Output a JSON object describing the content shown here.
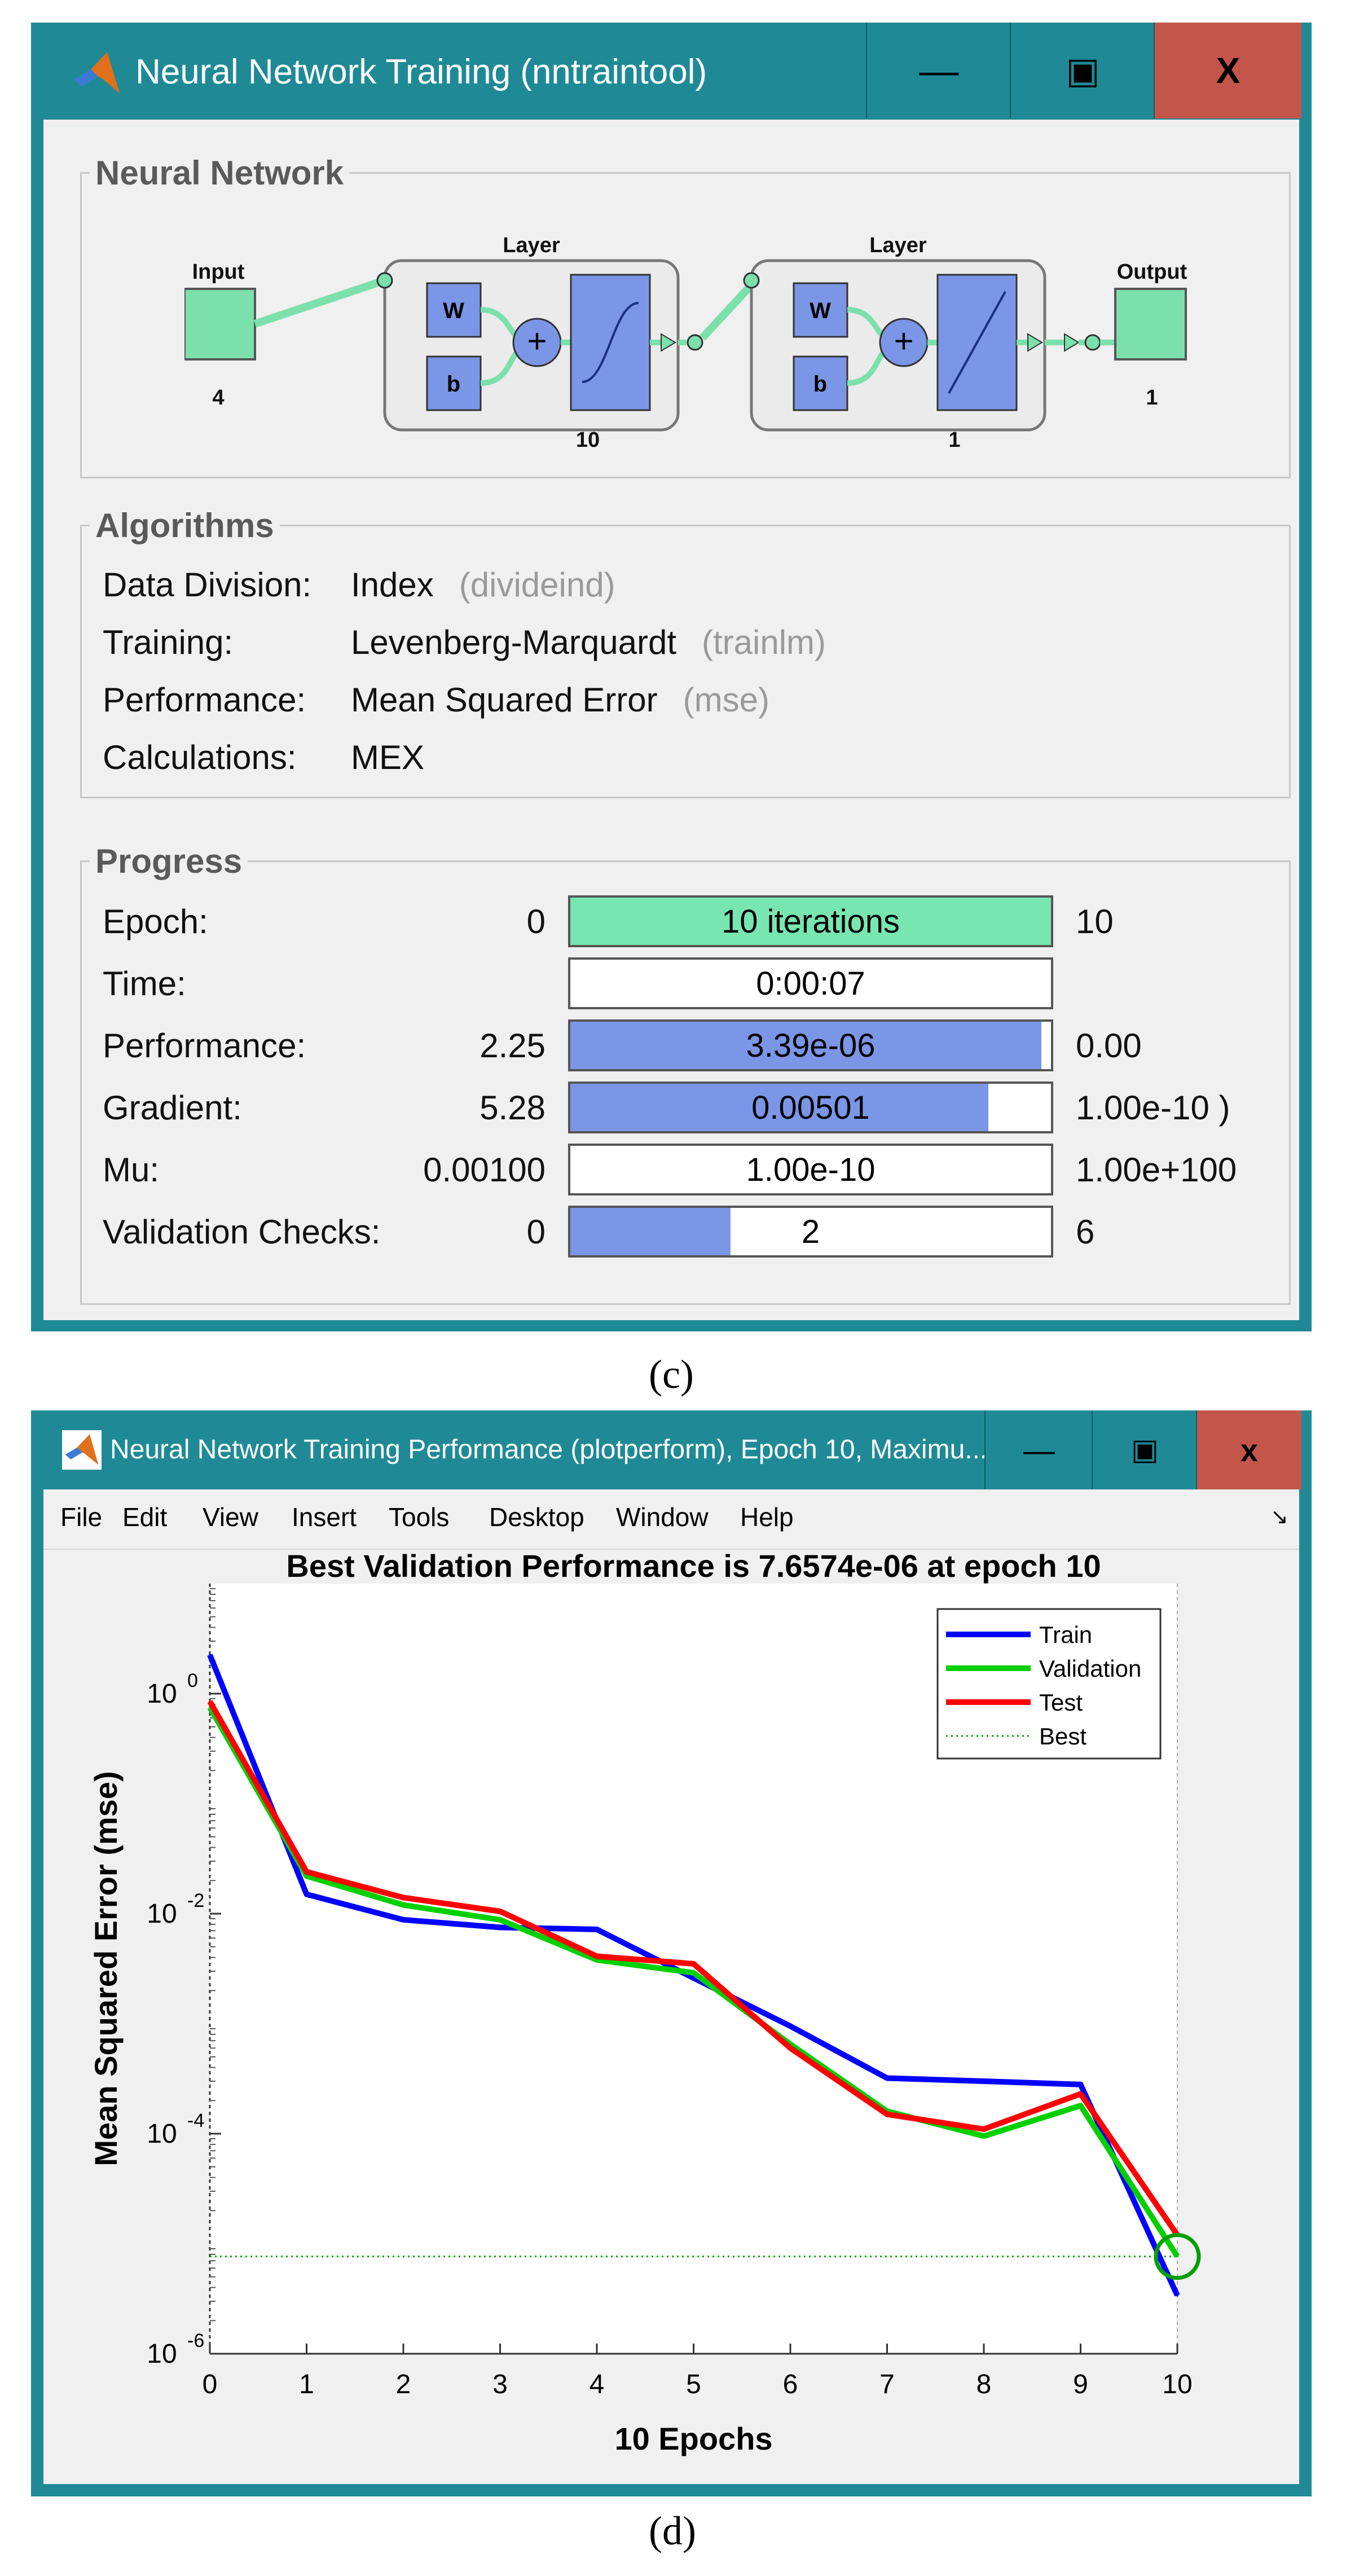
{
  "nntraintool": {
    "title": "Neural Network Training (nntraintool)",
    "window_buttons": {
      "minimize": "―",
      "maximize": "▣",
      "close": "X"
    },
    "network": {
      "group_label": "Neural Network",
      "input_label": "Input",
      "input_size": "4",
      "layers": [
        {
          "label": "Layer",
          "w": "W",
          "b": "b",
          "plus": "+",
          "size": "10",
          "transfer": "tansig"
        },
        {
          "label": "Layer",
          "w": "W",
          "b": "b",
          "plus": "+",
          "size": "1",
          "transfer": "purelin"
        }
      ],
      "output_label": "Output",
      "output_size": "1"
    },
    "algorithms": {
      "group_label": "Algorithms",
      "rows": [
        {
          "label": "Data Division:",
          "value": "Index",
          "code": "(divideind)"
        },
        {
          "label": "Training:",
          "value": "Levenberg-Marquardt",
          "code": "(trainlm)"
        },
        {
          "label": "Performance:",
          "value": "Mean Squared Error",
          "code": "(mse)"
        },
        {
          "label": "Calculations:",
          "value": "MEX",
          "code": ""
        }
      ]
    },
    "progress": {
      "group_label": "Progress",
      "rows": [
        {
          "label": "Epoch:",
          "start": "0",
          "current": "10 iterations",
          "end": "10",
          "fill": 1.0,
          "fill_color": "#78e6b0"
        },
        {
          "label": "Time:",
          "start": "",
          "current": "0:00:07",
          "end": "",
          "fill": 0.0,
          "fill_color": "#7b96e6"
        },
        {
          "label": "Performance:",
          "start": "2.25",
          "current": "3.39e-06",
          "end": "0.00",
          "fill": 0.98,
          "fill_color": "#7b96e6"
        },
        {
          "label": "Gradient:",
          "start": "5.28",
          "current": "0.00501",
          "end": "1.00e-10 )",
          "fill": 0.87,
          "fill_color": "#7b96e6"
        },
        {
          "label": "Mu:",
          "start": "0.00100",
          "current": "1.00e-10",
          "end": "1.00e+100",
          "fill": 0.0,
          "fill_color": "#7b96e6"
        },
        {
          "label": "Validation Checks:",
          "start": "0",
          "current": "2",
          "end": "6",
          "fill": 0.333,
          "fill_color": "#7b96e6"
        }
      ]
    }
  },
  "caption_c": "(c)",
  "plotperform": {
    "title": "Neural Network Training Performance (plotperform), Epoch 10, Maximu...",
    "window_buttons": {
      "minimize": "―",
      "maximize": "▣",
      "close": "x"
    },
    "menu": [
      "File",
      "Edit",
      "View",
      "Insert",
      "Tools",
      "Desktop",
      "Window",
      "Help"
    ],
    "dock_arrow": "↘"
  },
  "caption_d": "(d)",
  "chart_data": {
    "type": "line",
    "title": "Best Validation Performance is 7.6574e-06 at epoch 10",
    "xlabel": "10 Epochs",
    "ylabel": "Mean Squared Error  (mse)",
    "x": [
      0,
      1,
      2,
      3,
      4,
      5,
      6,
      7,
      8,
      9,
      10
    ],
    "xlim": [
      0,
      10
    ],
    "ylim": [
      1e-06,
      10
    ],
    "yscale": "log",
    "xticks": [
      "0",
      "1",
      "2",
      "3",
      "4",
      "5",
      "6",
      "7",
      "8",
      "9",
      "10"
    ],
    "yticks": [
      {
        "value": 1,
        "base": "10",
        "exp": "0"
      },
      {
        "value": 0.01,
        "base": "10",
        "exp": "-2"
      },
      {
        "value": 0.0001,
        "base": "10",
        "exp": "-4"
      },
      {
        "value": 1e-06,
        "base": "10",
        "exp": "-6"
      }
    ],
    "series": [
      {
        "name": "Train",
        "color": "#0000ff",
        "values": [
          2.25,
          0.015,
          0.0088,
          0.0075,
          0.0072,
          0.0026,
          0.00095,
          0.00032,
          0.0003,
          0.00028,
          3.39e-06
        ]
      },
      {
        "name": "Validation",
        "color": "#00d000",
        "values": [
          0.75,
          0.022,
          0.012,
          0.0088,
          0.0038,
          0.0029,
          0.00065,
          0.00016,
          9.5e-05,
          0.00018,
          7.6574e-06
        ]
      },
      {
        "name": "Test",
        "color": "#ff0000",
        "values": [
          0.85,
          0.024,
          0.014,
          0.0105,
          0.0041,
          0.0035,
          0.0006,
          0.00015,
          0.00011,
          0.00023,
          1.2e-05
        ]
      }
    ],
    "best": {
      "name": "Best",
      "value": 7.6574e-06,
      "epoch": 10,
      "color": "#00a000"
    },
    "legend_position": "top-right",
    "grid": false
  }
}
